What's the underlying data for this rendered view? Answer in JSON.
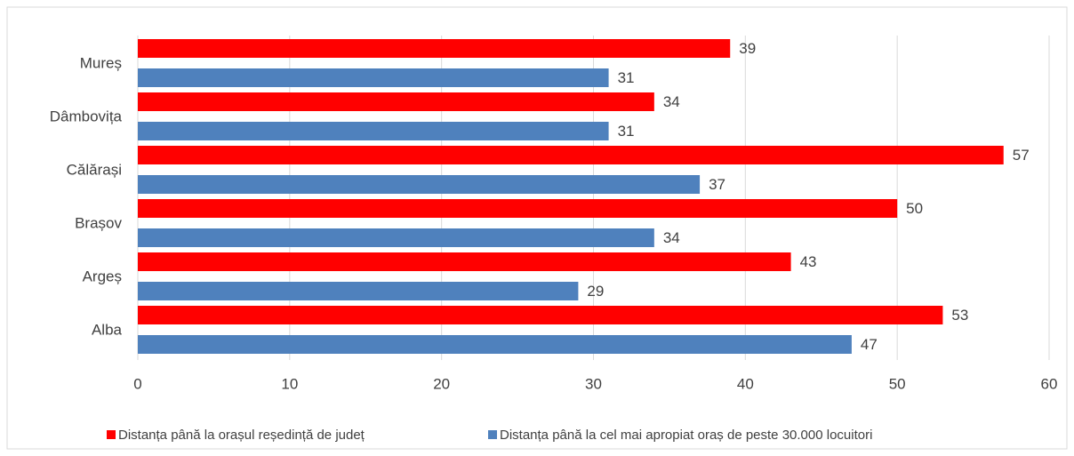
{
  "chart_data": {
    "type": "bar",
    "orientation": "horizontal",
    "categories": [
      "Mureș",
      "Dâmbovița",
      "Călărași",
      "Brașov",
      "Argeș",
      "Alba"
    ],
    "series": [
      {
        "name": "Distanța până la orașul reședință de județ",
        "color": "#ff0000",
        "values": [
          39,
          34,
          57,
          50,
          43,
          53
        ]
      },
      {
        "name": "Distanța până la cel mai apropiat oraș de peste 30.000 locuitori",
        "color": "#4f81bd",
        "values": [
          31,
          31,
          37,
          34,
          29,
          47
        ]
      }
    ],
    "xlim": [
      0,
      60
    ],
    "xticks": [
      0,
      10,
      20,
      30,
      40,
      50,
      60
    ],
    "grid": true,
    "legend": "bottom"
  }
}
